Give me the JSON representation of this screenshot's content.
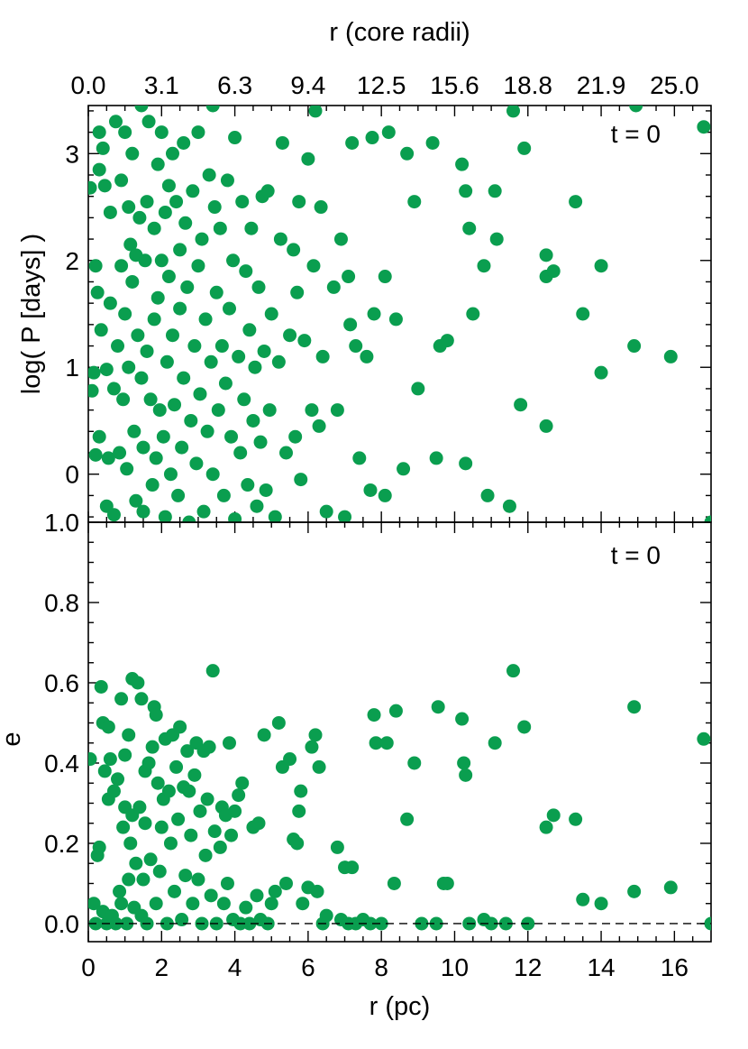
{
  "chart_data": [
    {
      "type": "scatter",
      "panel": "top",
      "annotation": "t = 0",
      "xlabel": "",
      "ylabel": "log( P [days] )",
      "top_xlabel": "r (core radii)",
      "top_tick_labels": [
        "0.0",
        "3.1",
        "6.3",
        "9.4",
        "12.5",
        "15.6",
        "18.8",
        "21.9",
        "25.0"
      ],
      "top_tick_values_pc": [
        0,
        2,
        4,
        6,
        8,
        10,
        12,
        14,
        16
      ],
      "xlim": [
        0,
        17
      ],
      "ylim": [
        -0.45,
        3.45
      ],
      "ytick_values": [
        0,
        1,
        2,
        3
      ],
      "ytick_labels": [
        "0",
        "1",
        "2",
        "3"
      ],
      "marker_color": "#0a9e4f",
      "points": [
        [
          0.05,
          2.68
        ],
        [
          0.1,
          0.78
        ],
        [
          0.15,
          0.95
        ],
        [
          0.2,
          1.95
        ],
        [
          0.2,
          0.18
        ],
        [
          0.25,
          1.7
        ],
        [
          0.3,
          2.85
        ],
        [
          0.3,
          3.2
        ],
        [
          0.3,
          0.35
        ],
        [
          0.35,
          1.35
        ],
        [
          0.4,
          3.05
        ],
        [
          0.45,
          2.7
        ],
        [
          0.5,
          0.98
        ],
        [
          0.5,
          -0.3
        ],
        [
          0.55,
          0.15
        ],
        [
          0.6,
          2.45
        ],
        [
          0.6,
          1.6
        ],
        [
          0.7,
          0.8
        ],
        [
          0.7,
          -0.38
        ],
        [
          0.75,
          3.3
        ],
        [
          0.8,
          1.2
        ],
        [
          0.85,
          0.2
        ],
        [
          0.9,
          2.75
        ],
        [
          0.9,
          1.95
        ],
        [
          0.95,
          0.7
        ],
        [
          1.0,
          3.2
        ],
        [
          1.0,
          1.5
        ],
        [
          1.05,
          0.05
        ],
        [
          1.1,
          2.5
        ],
        [
          1.1,
          1.0
        ],
        [
          1.15,
          2.15
        ],
        [
          1.2,
          3.0
        ],
        [
          1.2,
          1.8
        ],
        [
          1.25,
          0.4
        ],
        [
          1.3,
          -0.25
        ],
        [
          1.3,
          2.05
        ],
        [
          1.35,
          1.3
        ],
        [
          1.4,
          2.4
        ],
        [
          1.45,
          3.45
        ],
        [
          1.45,
          0.9
        ],
        [
          1.5,
          0.25
        ],
        [
          1.5,
          -0.35
        ],
        [
          1.55,
          2.0
        ],
        [
          1.6,
          1.15
        ],
        [
          1.6,
          2.55
        ],
        [
          1.65,
          3.3
        ],
        [
          1.7,
          0.7
        ],
        [
          1.75,
          -0.1
        ],
        [
          1.8,
          2.3
        ],
        [
          1.8,
          1.45
        ],
        [
          1.85,
          0.15
        ],
        [
          1.9,
          2.9
        ],
        [
          1.9,
          1.65
        ],
        [
          1.95,
          0.6
        ],
        [
          2.0,
          3.2
        ],
        [
          2.0,
          2.0
        ],
        [
          2.05,
          0.35
        ],
        [
          2.1,
          -0.4
        ],
        [
          2.1,
          2.45
        ],
        [
          2.15,
          1.05
        ],
        [
          2.2,
          2.7
        ],
        [
          2.2,
          1.85
        ],
        [
          2.25,
          0.0
        ],
        [
          2.3,
          3.0
        ],
        [
          2.3,
          1.3
        ],
        [
          2.35,
          0.65
        ],
        [
          2.4,
          2.55
        ],
        [
          2.45,
          -0.2
        ],
        [
          2.5,
          2.1
        ],
        [
          2.5,
          1.55
        ],
        [
          2.55,
          0.25
        ],
        [
          2.6,
          3.1
        ],
        [
          2.6,
          0.9
        ],
        [
          2.65,
          2.35
        ],
        [
          2.7,
          1.75
        ],
        [
          2.75,
          -0.45
        ],
        [
          2.8,
          0.5
        ],
        [
          2.85,
          2.65
        ],
        [
          2.9,
          1.2
        ],
        [
          2.95,
          0.1
        ],
        [
          3.0,
          3.2
        ],
        [
          3.0,
          1.95
        ],
        [
          3.05,
          0.75
        ],
        [
          3.1,
          2.2
        ],
        [
          3.15,
          -0.35
        ],
        [
          3.2,
          1.45
        ],
        [
          3.25,
          0.4
        ],
        [
          3.3,
          2.8
        ],
        [
          3.35,
          1.05
        ],
        [
          3.4,
          3.45
        ],
        [
          3.4,
          0.0
        ],
        [
          3.45,
          2.5
        ],
        [
          3.5,
          1.7
        ],
        [
          3.55,
          0.6
        ],
        [
          3.6,
          2.3
        ],
        [
          3.65,
          1.2
        ],
        [
          3.7,
          -0.2
        ],
        [
          3.75,
          0.85
        ],
        [
          3.8,
          2.75
        ],
        [
          3.85,
          1.55
        ],
        [
          3.9,
          0.35
        ],
        [
          3.95,
          2.0
        ],
        [
          4.0,
          3.15
        ],
        [
          4.0,
          -0.42
        ],
        [
          4.1,
          1.1
        ],
        [
          4.15,
          0.2
        ],
        [
          4.2,
          2.55
        ],
        [
          4.25,
          0.7
        ],
        [
          4.3,
          1.9
        ],
        [
          4.35,
          -0.1
        ],
        [
          4.4,
          1.35
        ],
        [
          4.45,
          2.3
        ],
        [
          4.5,
          0.5
        ],
        [
          4.55,
          1.0
        ],
        [
          4.6,
          -0.3
        ],
        [
          4.65,
          1.75
        ],
        [
          4.7,
          0.3
        ],
        [
          4.75,
          2.6
        ],
        [
          4.8,
          1.15
        ],
        [
          4.85,
          -0.15
        ],
        [
          4.9,
          2.65
        ],
        [
          4.95,
          0.6
        ],
        [
          5.0,
          1.5
        ],
        [
          5.1,
          -0.4
        ],
        [
          5.2,
          1.05
        ],
        [
          5.25,
          2.2
        ],
        [
          5.3,
          3.1
        ],
        [
          5.4,
          0.2
        ],
        [
          5.5,
          1.3
        ],
        [
          5.6,
          2.1
        ],
        [
          5.65,
          0.35
        ],
        [
          5.7,
          1.7
        ],
        [
          5.75,
          2.55
        ],
        [
          5.8,
          -0.05
        ],
        [
          5.9,
          1.25
        ],
        [
          6.0,
          2.95
        ],
        [
          6.1,
          0.6
        ],
        [
          6.15,
          1.95
        ],
        [
          6.2,
          3.4
        ],
        [
          6.3,
          0.45
        ],
        [
          6.35,
          2.5
        ],
        [
          6.4,
          1.1
        ],
        [
          6.5,
          -0.35
        ],
        [
          6.7,
          1.75
        ],
        [
          6.8,
          0.6
        ],
        [
          6.9,
          2.2
        ],
        [
          7.0,
          -0.4
        ],
        [
          7.1,
          1.85
        ],
        [
          7.15,
          1.4
        ],
        [
          7.2,
          3.1
        ],
        [
          7.3,
          1.2
        ],
        [
          7.4,
          0.15
        ],
        [
          7.6,
          1.1
        ],
        [
          7.7,
          -0.15
        ],
        [
          7.75,
          3.15
        ],
        [
          7.8,
          1.5
        ],
        [
          8.1,
          1.85
        ],
        [
          8.1,
          -0.2
        ],
        [
          8.2,
          3.2
        ],
        [
          8.4,
          1.45
        ],
        [
          8.6,
          0.05
        ],
        [
          8.7,
          3.0
        ],
        [
          8.9,
          2.55
        ],
        [
          9.0,
          0.8
        ],
        [
          9.4,
          3.1
        ],
        [
          9.5,
          0.15
        ],
        [
          9.6,
          1.2
        ],
        [
          9.8,
          1.25
        ],
        [
          10.2,
          2.9
        ],
        [
          10.3,
          2.65
        ],
        [
          10.3,
          0.1
        ],
        [
          10.4,
          2.3
        ],
        [
          10.5,
          1.5
        ],
        [
          10.8,
          1.95
        ],
        [
          10.9,
          -0.2
        ],
        [
          11.1,
          2.65
        ],
        [
          11.15,
          2.2
        ],
        [
          11.5,
          -0.3
        ],
        [
          11.6,
          3.4
        ],
        [
          11.8,
          0.65
        ],
        [
          11.9,
          3.05
        ],
        [
          12.5,
          2.05
        ],
        [
          12.5,
          1.85
        ],
        [
          12.5,
          0.45
        ],
        [
          12.7,
          1.9
        ],
        [
          13.3,
          2.55
        ],
        [
          13.5,
          1.5
        ],
        [
          14.0,
          1.95
        ],
        [
          14.0,
          0.95
        ],
        [
          14.9,
          1.2
        ],
        [
          14.95,
          3.45
        ],
        [
          15.9,
          1.1
        ],
        [
          16.8,
          3.25
        ],
        [
          17.0,
          -0.45
        ]
      ]
    },
    {
      "type": "scatter",
      "panel": "bottom",
      "annotation": "t = 0",
      "xlabel": "r (pc)",
      "ylabel": "e",
      "xlim": [
        0,
        17
      ],
      "ylim": [
        -0.045,
        1.0
      ],
      "xtick_values": [
        0,
        2,
        4,
        6,
        8,
        10,
        12,
        14,
        16
      ],
      "xtick_labels": [
        "0",
        "2",
        "4",
        "6",
        "8",
        "10",
        "12",
        "14",
        "16"
      ],
      "ytick_values": [
        0.0,
        0.2,
        0.4,
        0.6,
        0.8,
        1.0
      ],
      "ytick_labels": [
        "0.0",
        "0.2",
        "0.4",
        "0.6",
        "0.8",
        "1.0"
      ],
      "reference_line": {
        "y": 0.0,
        "style": "dashed"
      },
      "marker_color": "#0a9e4f",
      "points": [
        [
          0.05,
          0.41
        ],
        [
          0.15,
          0.05
        ],
        [
          0.2,
          0.0
        ],
        [
          0.25,
          0.17
        ],
        [
          0.3,
          0.19
        ],
        [
          0.35,
          0.59
        ],
        [
          0.4,
          0.03
        ],
        [
          0.4,
          0.5
        ],
        [
          0.45,
          0.38
        ],
        [
          0.5,
          0.0
        ],
        [
          0.55,
          0.31
        ],
        [
          0.55,
          0.49
        ],
        [
          0.6,
          0.41
        ],
        [
          0.65,
          0.02
        ],
        [
          0.7,
          0.33
        ],
        [
          0.75,
          0.0
        ],
        [
          0.8,
          0.36
        ],
        [
          0.85,
          0.08
        ],
        [
          0.9,
          0.05
        ],
        [
          0.9,
          0.56
        ],
        [
          0.95,
          0.24
        ],
        [
          1.0,
          0.29
        ],
        [
          1.0,
          0.42
        ],
        [
          1.05,
          0.0
        ],
        [
          1.1,
          0.11
        ],
        [
          1.1,
          0.47
        ],
        [
          1.15,
          0.2
        ],
        [
          1.2,
          0.61
        ],
        [
          1.2,
          0.27
        ],
        [
          1.25,
          0.04
        ],
        [
          1.3,
          0.15
        ],
        [
          1.35,
          0.6
        ],
        [
          1.4,
          0.29
        ],
        [
          1.45,
          0.56
        ],
        [
          1.45,
          0.02
        ],
        [
          1.5,
          0.11
        ],
        [
          1.55,
          0.38
        ],
        [
          1.55,
          0.25
        ],
        [
          1.6,
          0.0
        ],
        [
          1.65,
          0.4
        ],
        [
          1.7,
          0.16
        ],
        [
          1.75,
          0.44
        ],
        [
          1.8,
          0.54
        ],
        [
          1.85,
          0.52
        ],
        [
          1.85,
          0.05
        ],
        [
          1.9,
          0.35
        ],
        [
          1.95,
          0.13
        ],
        [
          2.0,
          0.24
        ],
        [
          2.05,
          0.31
        ],
        [
          2.1,
          0.46
        ],
        [
          2.15,
          0.0
        ],
        [
          2.2,
          0.33
        ],
        [
          2.25,
          0.2
        ],
        [
          2.3,
          0.47
        ],
        [
          2.35,
          0.08
        ],
        [
          2.4,
          0.39
        ],
        [
          2.45,
          0.26
        ],
        [
          2.5,
          0.49
        ],
        [
          2.55,
          0.01
        ],
        [
          2.6,
          0.34
        ],
        [
          2.65,
          0.12
        ],
        [
          2.7,
          0.43
        ],
        [
          2.75,
          0.33
        ],
        [
          2.8,
          0.22
        ],
        [
          2.85,
          0.05
        ],
        [
          2.9,
          0.37
        ],
        [
          2.95,
          0.45
        ],
        [
          3.0,
          0.11
        ],
        [
          3.05,
          0.28
        ],
        [
          3.1,
          0.0
        ],
        [
          3.15,
          0.43
        ],
        [
          3.2,
          0.17
        ],
        [
          3.25,
          0.31
        ],
        [
          3.3,
          0.44
        ],
        [
          3.35,
          0.07
        ],
        [
          3.4,
          0.63
        ],
        [
          3.45,
          0.23
        ],
        [
          3.5,
          0.0
        ],
        [
          3.6,
          0.19
        ],
        [
          3.65,
          0.29
        ],
        [
          3.7,
          0.05
        ],
        [
          3.75,
          0.27
        ],
        [
          3.8,
          0.1
        ],
        [
          3.85,
          0.45
        ],
        [
          3.9,
          0.22
        ],
        [
          3.95,
          0.01
        ],
        [
          4.0,
          0.28
        ],
        [
          4.1,
          0.32
        ],
        [
          4.15,
          0.0
        ],
        [
          4.2,
          0.35
        ],
        [
          4.3,
          0.04
        ],
        [
          4.4,
          0.0
        ],
        [
          4.5,
          0.24
        ],
        [
          4.6,
          0.07
        ],
        [
          4.65,
          0.25
        ],
        [
          4.7,
          0.01
        ],
        [
          4.8,
          0.47
        ],
        [
          4.9,
          0.0
        ],
        [
          5.0,
          0.05
        ],
        [
          5.1,
          0.08
        ],
        [
          5.2,
          0.5
        ],
        [
          5.3,
          0.39
        ],
        [
          5.4,
          0.1
        ],
        [
          5.5,
          0.41
        ],
        [
          5.6,
          0.21
        ],
        [
          5.7,
          0.2
        ],
        [
          5.75,
          0.28
        ],
        [
          5.8,
          0.33
        ],
        [
          5.85,
          0.05
        ],
        [
          6.0,
          0.09
        ],
        [
          6.1,
          0.44
        ],
        [
          6.2,
          0.47
        ],
        [
          6.25,
          0.08
        ],
        [
          6.3,
          0.39
        ],
        [
          6.4,
          0.0
        ],
        [
          6.5,
          0.02
        ],
        [
          6.8,
          0.19
        ],
        [
          6.9,
          0.01
        ],
        [
          7.0,
          0.14
        ],
        [
          7.1,
          0.0
        ],
        [
          7.2,
          0.14
        ],
        [
          7.3,
          0.0
        ],
        [
          7.5,
          0.01
        ],
        [
          7.7,
          0.0
        ],
        [
          7.8,
          0.52
        ],
        [
          7.85,
          0.45
        ],
        [
          8.0,
          0.0
        ],
        [
          8.15,
          0.45
        ],
        [
          8.35,
          0.1
        ],
        [
          8.4,
          0.53
        ],
        [
          8.7,
          0.26
        ],
        [
          8.9,
          0.4
        ],
        [
          9.1,
          0.0
        ],
        [
          9.5,
          0.0
        ],
        [
          9.55,
          0.54
        ],
        [
          9.7,
          0.1
        ],
        [
          9.8,
          0.1
        ],
        [
          10.2,
          0.51
        ],
        [
          10.25,
          0.4
        ],
        [
          10.3,
          0.37
        ],
        [
          10.4,
          0.0
        ],
        [
          10.8,
          0.01
        ],
        [
          11.0,
          0.0
        ],
        [
          11.1,
          0.45
        ],
        [
          11.4,
          0.0
        ],
        [
          11.6,
          0.63
        ],
        [
          11.9,
          0.49
        ],
        [
          12.0,
          0.0
        ],
        [
          12.5,
          0.24
        ],
        [
          12.7,
          0.27
        ],
        [
          13.3,
          0.26
        ],
        [
          13.5,
          0.06
        ],
        [
          14.0,
          0.05
        ],
        [
          14.9,
          0.54
        ],
        [
          14.9,
          0.08
        ],
        [
          15.9,
          0.09
        ],
        [
          16.8,
          0.46
        ],
        [
          17.0,
          0.0
        ]
      ]
    }
  ]
}
